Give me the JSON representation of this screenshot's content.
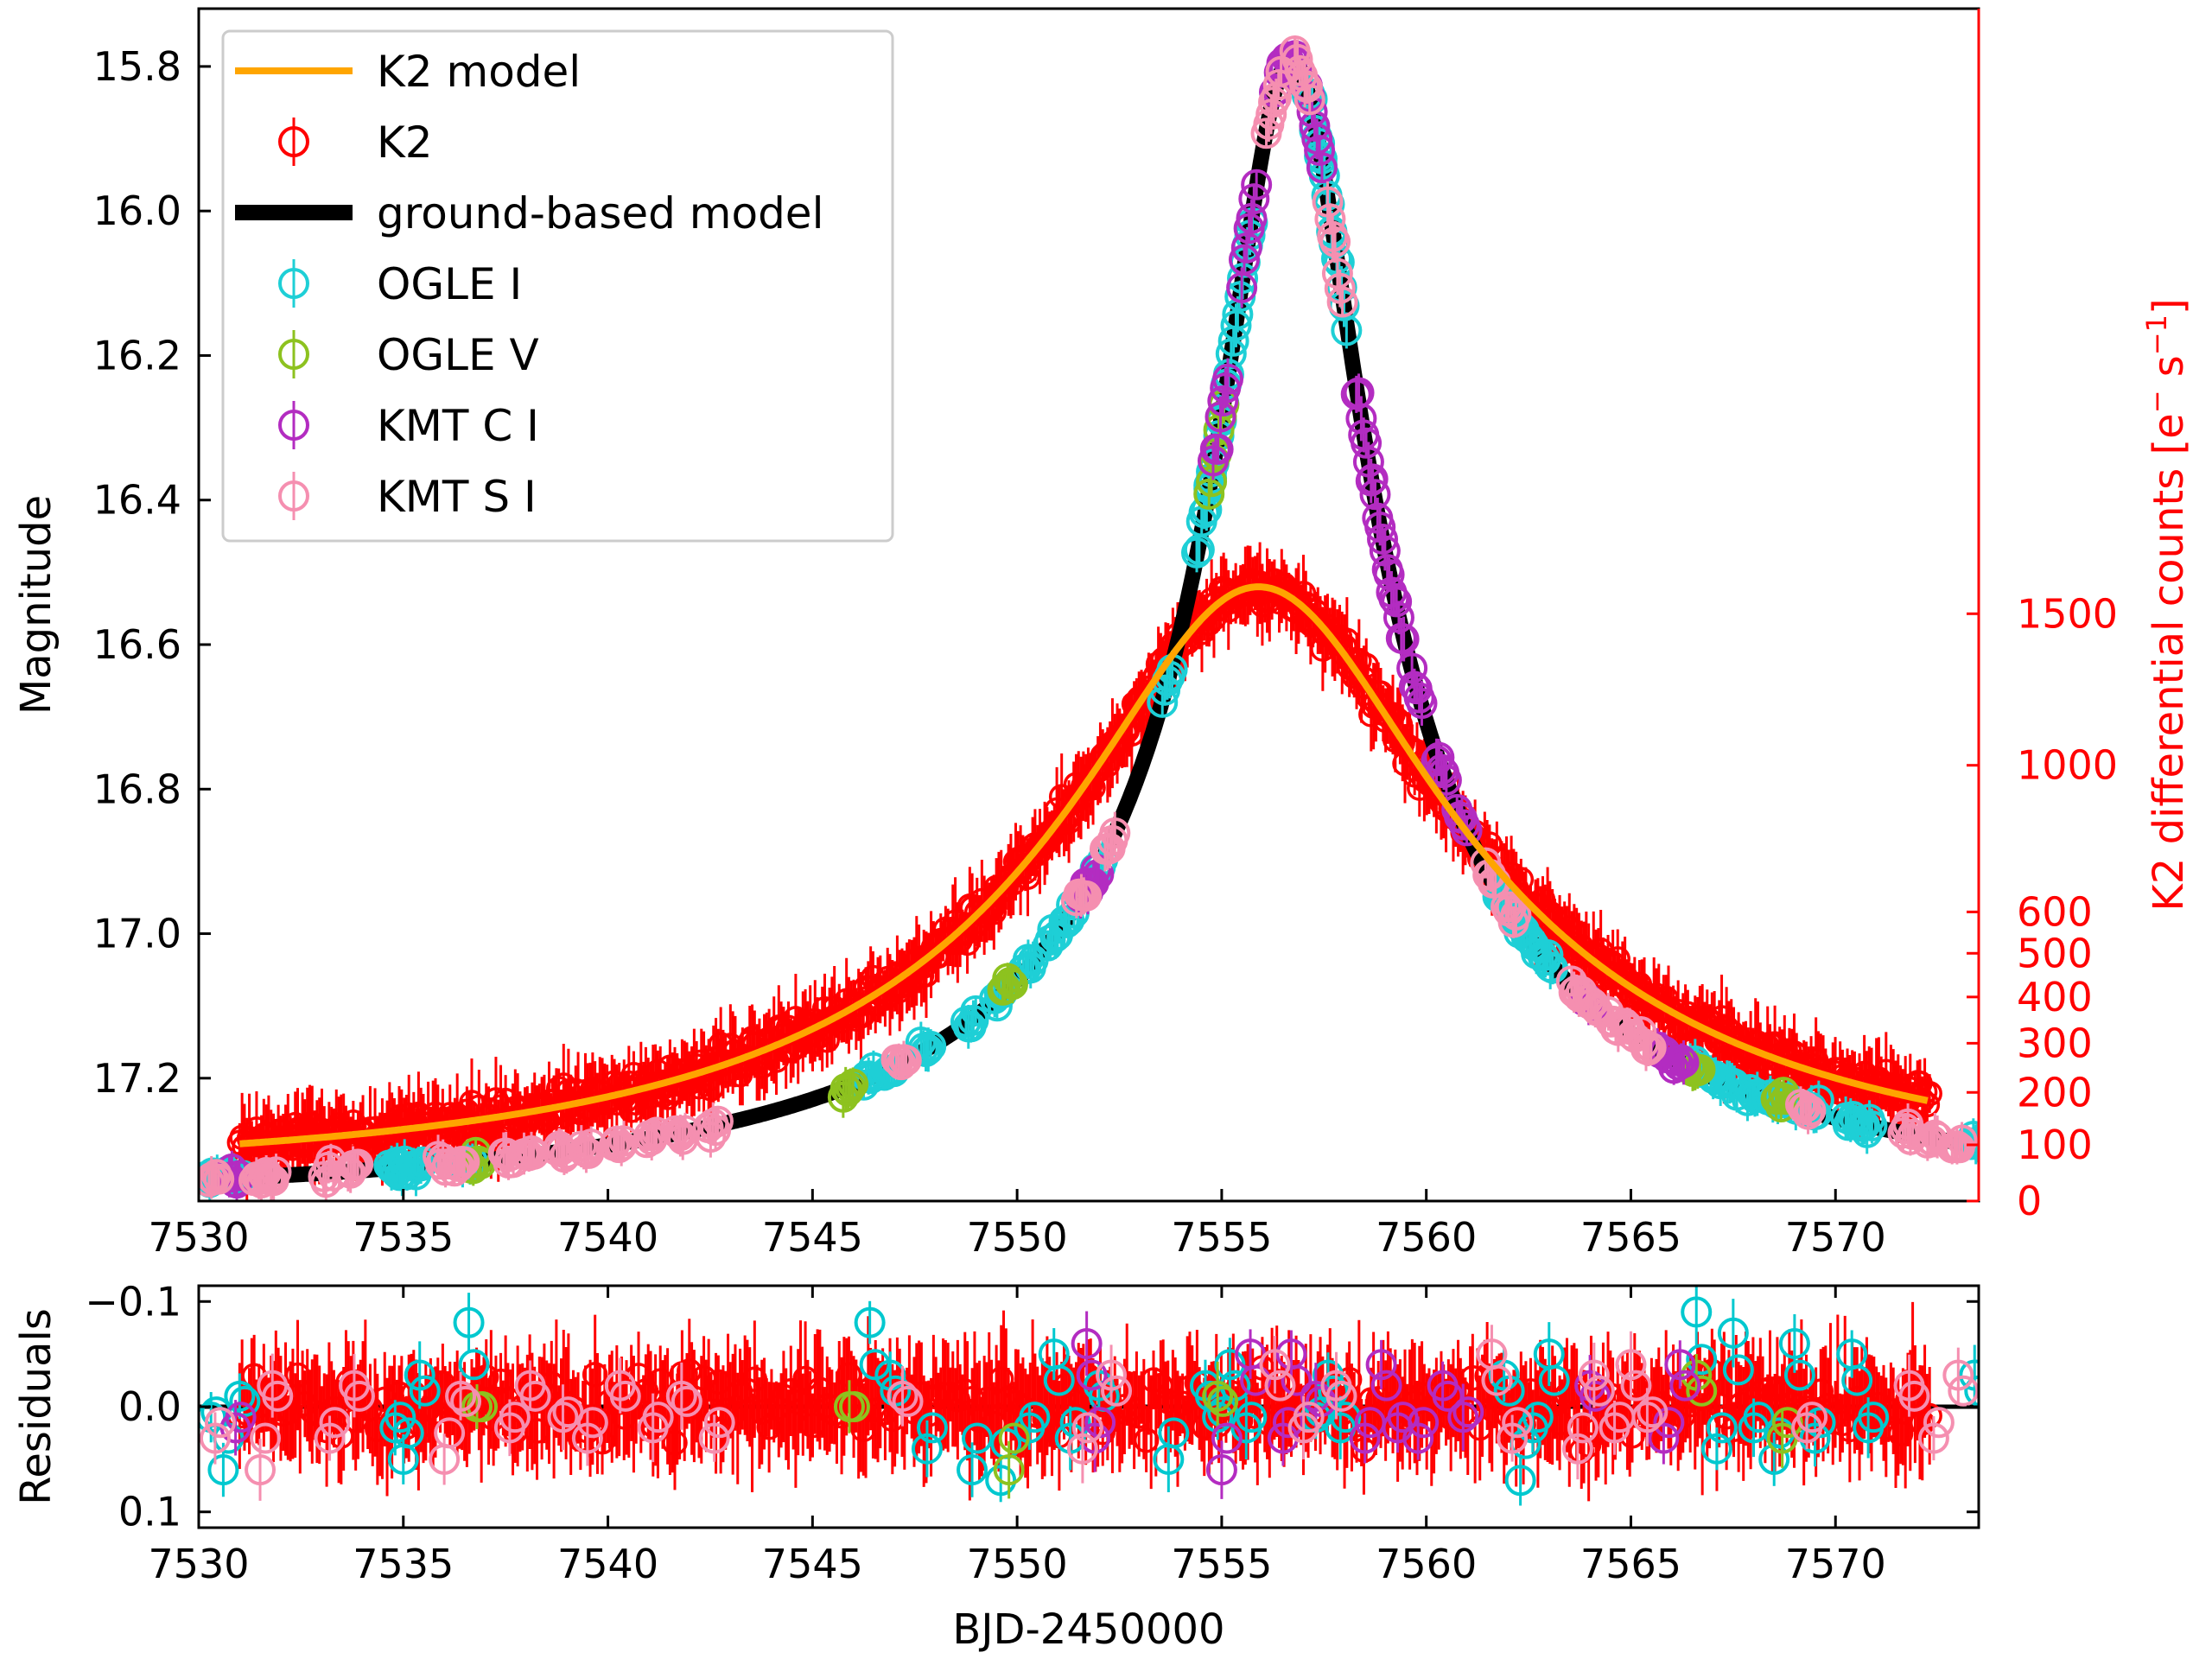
{
  "chart_data": {
    "type": "scatter",
    "x_ticks": [
      7530,
      7535,
      7540,
      7545,
      7550,
      7555,
      7560,
      7565,
      7570
    ],
    "xlabel": "BJD-2450000",
    "main": {
      "ylabel": "Magnitude",
      "xlim": [
        7530,
        7573.5
      ],
      "ylim": [
        17.37,
        15.72
      ],
      "y_ticks": [
        "15.8",
        "16.0",
        "16.2",
        "16.4",
        "16.6",
        "16.8",
        "17.0",
        "17.2"
      ],
      "right_axis": {
        "label": "K2 differential counts [e",
        "label_sup": "−",
        "label_mid": " s",
        "label_sup2": "−1",
        "label_end": "]",
        "ticks": [
          "0",
          "100",
          "200",
          "300",
          "400",
          "500",
          "600",
          "1000",
          "1500"
        ]
      }
    },
    "residuals": {
      "ylabel": "Residuals",
      "ylim": [
        0.115,
        -0.115
      ],
      "y_ticks": [
        "−0.1",
        "0.0",
        "0.1"
      ]
    },
    "legend": {
      "placement": "upper-left",
      "entries": [
        {
          "label": "K2 model",
          "kind": "line",
          "color": "#FFA500"
        },
        {
          "label": "K2",
          "kind": "errorbar",
          "color": "#FF0000"
        },
        {
          "label": "ground-based model",
          "kind": "thick-line",
          "color": "#000000"
        },
        {
          "label": "OGLE I",
          "kind": "errorbar",
          "color": "#1ECFD6"
        },
        {
          "label": "OGLE V",
          "kind": "errorbar",
          "color": "#8DC21F"
        },
        {
          "label": "KMT C I",
          "kind": "errorbar",
          "color": "#B32CC1"
        },
        {
          "label": "KMT S I",
          "kind": "errorbar",
          "color": "#F58FB0"
        }
      ]
    },
    "ground_model": {
      "t0": 7556.7,
      "peak_mag": 15.79,
      "base_mag": 17.37,
      "u0": 0.078,
      "tE": 22.0
    },
    "k2_model": {
      "t0": 7555.9,
      "peak_mag": 16.52,
      "base_mag": 17.33,
      "u0": 0.27,
      "tE": 17.0,
      "t_start": 7531.0,
      "t_end": 7572.3
    },
    "series": [
      {
        "name": "K2",
        "color": "#FF0000",
        "t_range": [
          7531.0,
          7572.3
        ],
        "samples": 700,
        "scatter_main": 0.024,
        "scatter_res": 0.032,
        "model": "k2"
      },
      {
        "name": "OGLE I",
        "color": "#1ECFD6",
        "color_res": "#00C8CF",
        "t": [
          7530.3,
          7530.6,
          7531.0,
          7534.8,
          7535.0,
          7535.4,
          7536.6,
          7546.4,
          7546.9,
          7547.8,
          7548.9,
          7549.6,
          7550.3,
          7550.9,
          7551.3,
          7552.0,
          7553.7,
          7554.6,
          7554.9,
          7555.2,
          7555.6,
          7557.3,
          7557.6,
          7557.9,
          7561.9,
          7562.3,
          7562.6,
          7563.0,
          7566.6,
          7567.1,
          7567.5,
          7568.0,
          7568.5,
          7569.0,
          7569.5,
          7570.4,
          7570.8,
          7573.4
        ],
        "res": [
          0.01,
          0.06,
          -0.01,
          0.02,
          0.05,
          -0.03,
          -0.08,
          -0.08,
          -0.03,
          0.04,
          0.06,
          0.07,
          0.02,
          -0.05,
          0.03,
          -0.02,
          0.05,
          -0.02,
          0.01,
          -0.04,
          0.02,
          0.01,
          -0.03,
          0.02,
          -0.03,
          0.07,
          0.02,
          -0.05,
          -0.09,
          0.04,
          -0.07,
          0.02,
          0.05,
          -0.06,
          0.03,
          -0.05,
          0.02,
          -0.03
        ]
      },
      {
        "name": "OGLE V",
        "color": "#8DC21F",
        "t": [
          7536.8,
          7545.9,
          7549.8,
          7554.9,
          7566.6,
          7568.7
        ],
        "res": [
          0.0,
          0.0,
          0.06,
          -0.01,
          -0.03,
          0.03
        ]
      },
      {
        "name": "KMT C I",
        "color": "#B32CC1",
        "t": [
          7530.9,
          7551.7,
          7551.9,
          7555.0,
          7555.7,
          7556.5,
          7556.7,
          7557.3,
          7558.5,
          7558.9,
          7559.3,
          7559.8,
          7560.4,
          7560.9,
          7564.0,
          7565.8,
          7566.2
        ],
        "res": [
          0.02,
          -0.06,
          0.03,
          0.06,
          -0.05,
          0.03,
          -0.05,
          -0.01,
          0.03,
          -0.04,
          0.02,
          0.03,
          -0.02,
          0.01,
          -0.02,
          0.03,
          -0.04
        ]
      },
      {
        "name": "KMT S I",
        "color": "#F58FB0",
        "t": [
          7530.4,
          7531.5,
          7531.8,
          7533.2,
          7533.8,
          7536.0,
          7536.4,
          7537.6,
          7538.1,
          7538.9,
          7539.5,
          7540.3,
          7541.1,
          7541.8,
          7542.6,
          7547.2,
          7551.6,
          7552.3,
          7556.3,
          7557.0,
          7557.8,
          7561.6,
          7562.1,
          7563.7,
          7564.1,
          7564.6,
          7565.0,
          7565.4,
          7569.3,
          7571.8,
          7572.4,
          7573.0
        ],
        "res": [
          0.03,
          0.06,
          -0.02,
          0.03,
          -0.02,
          0.05,
          -0.01,
          0.02,
          -0.02,
          0.01,
          0.03,
          -0.02,
          0.02,
          -0.01,
          0.03,
          -0.01,
          0.04,
          -0.03,
          -0.04,
          0.02,
          -0.02,
          -0.05,
          0.03,
          0.04,
          -0.03,
          0.02,
          -0.04,
          0.01,
          0.02,
          -0.02,
          0.03,
          -0.03
        ]
      }
    ]
  }
}
